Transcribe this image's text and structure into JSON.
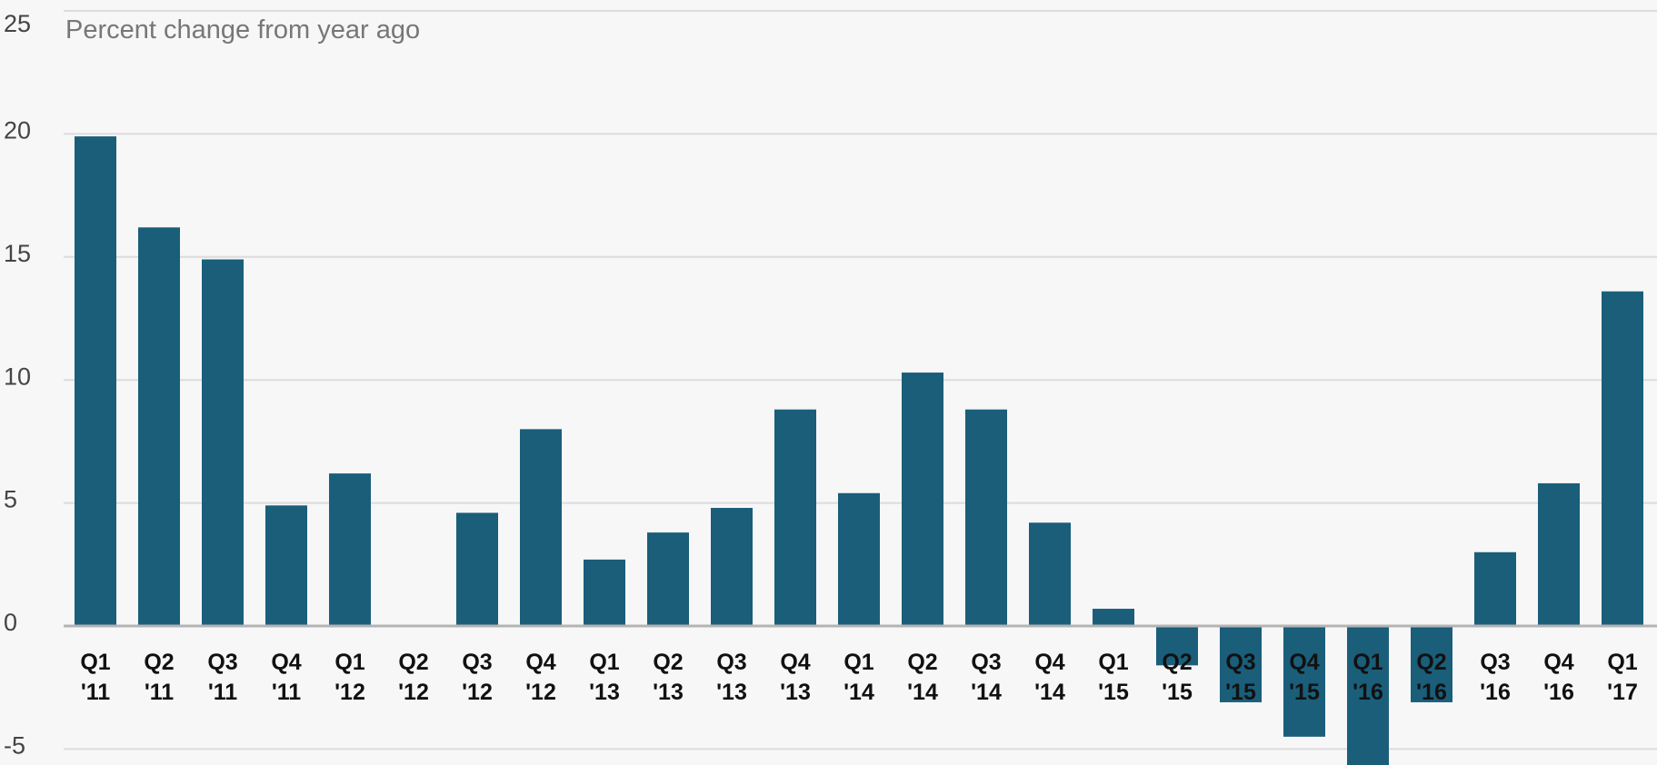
{
  "colors": {
    "bar": "#1a5e7a",
    "grid": "#dcdcdc",
    "zero": "#b4b4b4",
    "background": "#f7f7f7"
  },
  "chart_data": {
    "type": "bar",
    "ylabel": "Percent change from year ago",
    "ylim": [
      -5,
      25
    ],
    "yticks": [
      25,
      20,
      15,
      10,
      5,
      0,
      -5
    ],
    "yticks_labels": [
      "25",
      "20",
      "15",
      "10",
      "5",
      "0",
      "-5"
    ],
    "grid": true,
    "categories": [
      {
        "q": "Q1",
        "y": "'11"
      },
      {
        "q": "Q2",
        "y": "'11"
      },
      {
        "q": "Q3",
        "y": "'11"
      },
      {
        "q": "Q4",
        "y": "'11"
      },
      {
        "q": "Q1",
        "y": "'12"
      },
      {
        "q": "Q2",
        "y": "'12"
      },
      {
        "q": "Q3",
        "y": "'12"
      },
      {
        "q": "Q4",
        "y": "'12"
      },
      {
        "q": "Q1",
        "y": "'13"
      },
      {
        "q": "Q2",
        "y": "'13"
      },
      {
        "q": "Q3",
        "y": "'13"
      },
      {
        "q": "Q4",
        "y": "'13"
      },
      {
        "q": "Q1",
        "y": "'14"
      },
      {
        "q": "Q2",
        "y": "'14"
      },
      {
        "q": "Q3",
        "y": "'14"
      },
      {
        "q": "Q4",
        "y": "'14"
      },
      {
        "q": "Q1",
        "y": "'15"
      },
      {
        "q": "Q2",
        "y": "'15"
      },
      {
        "q": "Q3",
        "y": "'15"
      },
      {
        "q": "Q4",
        "y": "'15"
      },
      {
        "q": "Q1",
        "y": "'16"
      },
      {
        "q": "Q2",
        "y": "'16"
      },
      {
        "q": "Q3",
        "y": "'16"
      },
      {
        "q": "Q4",
        "y": "'16"
      },
      {
        "q": "Q1",
        "y": "'17"
      }
    ],
    "values": [
      19.9,
      16.2,
      14.9,
      4.9,
      6.2,
      0,
      4.6,
      8.0,
      2.7,
      3.8,
      4.8,
      8.8,
      5.4,
      10.3,
      8.8,
      4.2,
      0.7,
      -1.6,
      -3.1,
      -4.5,
      -6.0,
      -3.1,
      3.0,
      5.8,
      13.6
    ]
  }
}
